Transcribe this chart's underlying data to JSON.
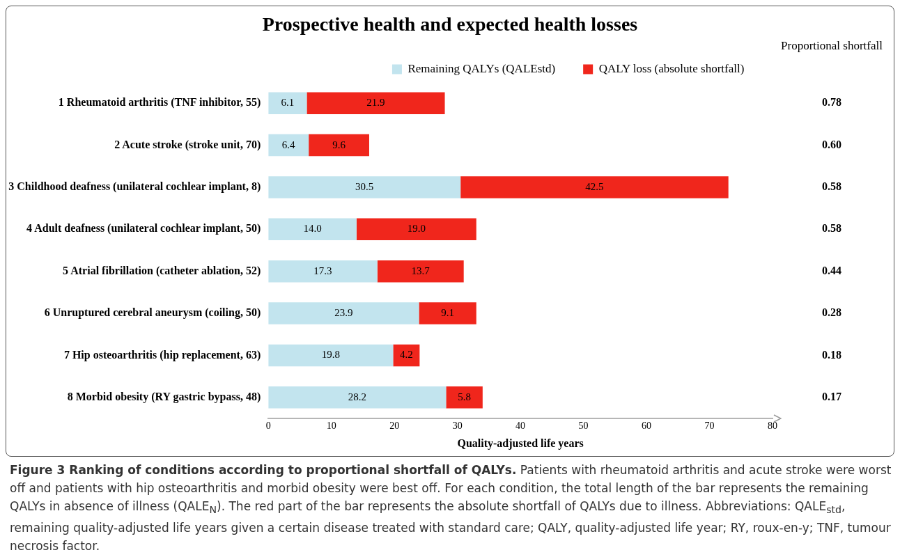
{
  "chart_data": {
    "type": "bar",
    "orientation": "horizontal",
    "stacked": true,
    "title": "Prospective health and expected health losses",
    "xlabel": "Quality-adjusted life years",
    "categories": [
      "1 Rheumatoid arthritis (TNF inhibitor, 55)",
      "2 Acute stroke (stroke unit, 70)",
      "3 Childhood deafness (unilateral cochlear implant, 8)",
      "4 Adult deafness (unilateral cochlear implant, 50)",
      "5 Atrial fibrillation (catheter ablation, 52)",
      "6 Unruptured cerebral aneurysm (coiling, 50)",
      "7 Hip osteoarthritis (hip replacement, 63)",
      "8 Morbid obesity (RY gastric bypass, 48)"
    ],
    "series": [
      {
        "name": "Remaining QALYs (QALEstd)",
        "color": "#c2e4ee",
        "values": [
          6.1,
          6.4,
          30.5,
          14.0,
          17.3,
          23.9,
          19.8,
          28.2
        ],
        "value_labels": [
          "6.1",
          "6.4",
          "30.5",
          "14.0",
          "17.3",
          "23.9",
          "19.8",
          "28.2"
        ]
      },
      {
        "name": "QALY loss (absolute shortfall)",
        "color": "#f0261c",
        "values": [
          21.9,
          9.6,
          42.5,
          19.0,
          13.7,
          9.1,
          4.2,
          5.8
        ],
        "value_labels": [
          "21.9",
          "9.6",
          "42.5",
          "19.0",
          "13.7",
          "9.1",
          "4.2",
          "5.8"
        ]
      }
    ],
    "xlim": [
      0,
      80
    ],
    "xticks": [
      0,
      10,
      20,
      30,
      40,
      50,
      60,
      70,
      80
    ],
    "grid": false,
    "legend": "top",
    "annotations": [
      "Proportional shortfall",
      "0.78",
      "0.60",
      "0.58",
      "0.58",
      "0.44",
      "0.28",
      "0.18",
      "0.17",
      "Figure 3 Ranking of conditions according to proportional shortfall of QALYs. Patients with rheumatoid arthritis and acute stroke were worst off and patients with hip osteoarthritis and morbid obesity were best off. For each condition, the total length of the bar represents the remaining QALYs in absence of illness (QALE$_{N}$). The red part of the bar represents the absolute shortfall of QALYs due to illness. Abbreviations: QALE$_{std}$, remaining quality-adjusted life years given a certain disease treated with standard care; QALY, quality-adjusted life year; RY, roux-en-y; TNF, tumour necrosis factor."
    ]
  }
}
